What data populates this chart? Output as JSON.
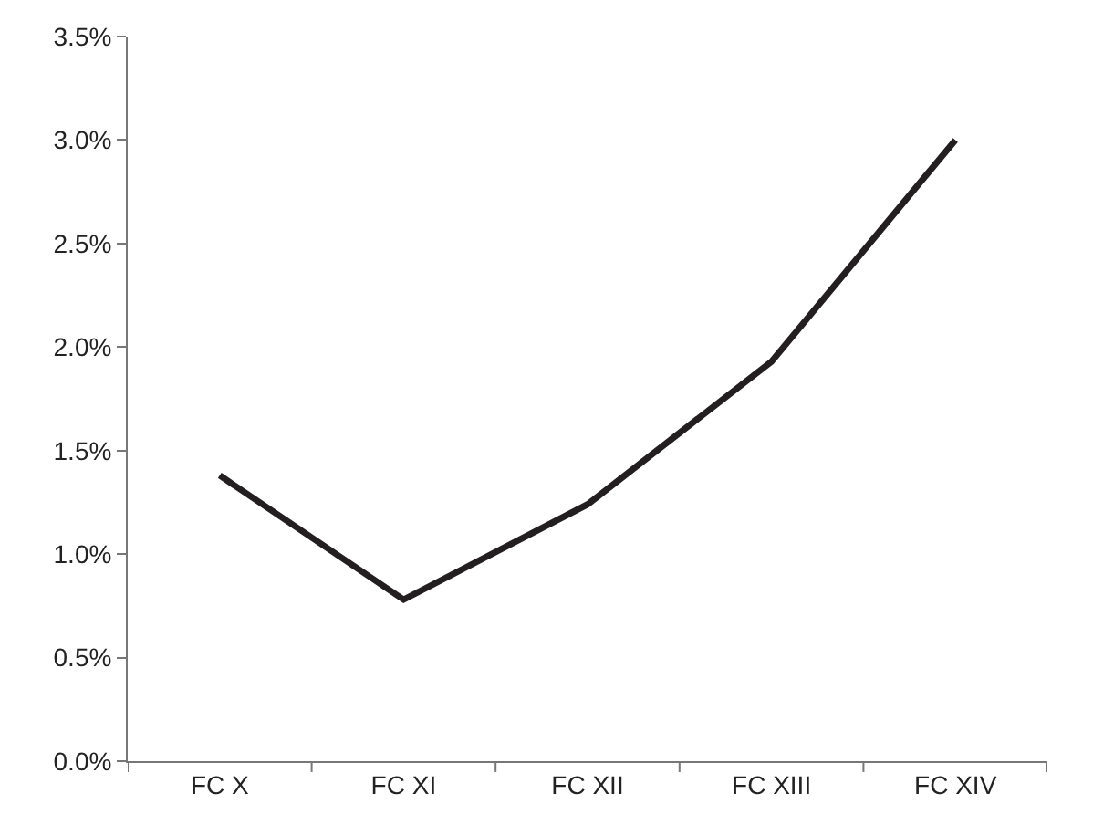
{
  "chart_data": {
    "type": "line",
    "categories": [
      "FC X",
      "FC XI",
      "FC XII",
      "FC XIII",
      "FC XIV"
    ],
    "series": [
      {
        "color": "#231f20",
        "values": [
          1.38,
          0.78,
          1.24,
          1.93,
          3.0
        ]
      }
    ],
    "ylim": [
      0,
      3.5
    ],
    "yticks": [
      {
        "value": 0,
        "label": "0.0%"
      },
      {
        "value": 0.5,
        "label": "0.5%"
      },
      {
        "value": 1,
        "label": "1.0%"
      },
      {
        "value": 1.5,
        "label": "1.5%"
      },
      {
        "value": 2,
        "label": "2.0%"
      },
      {
        "value": 2.5,
        "label": "2.5%"
      },
      {
        "value": 3,
        "label": "3.0%"
      },
      {
        "value": 3.5,
        "label": "3.5%"
      }
    ],
    "marker": "none",
    "line_style": "solid"
  }
}
